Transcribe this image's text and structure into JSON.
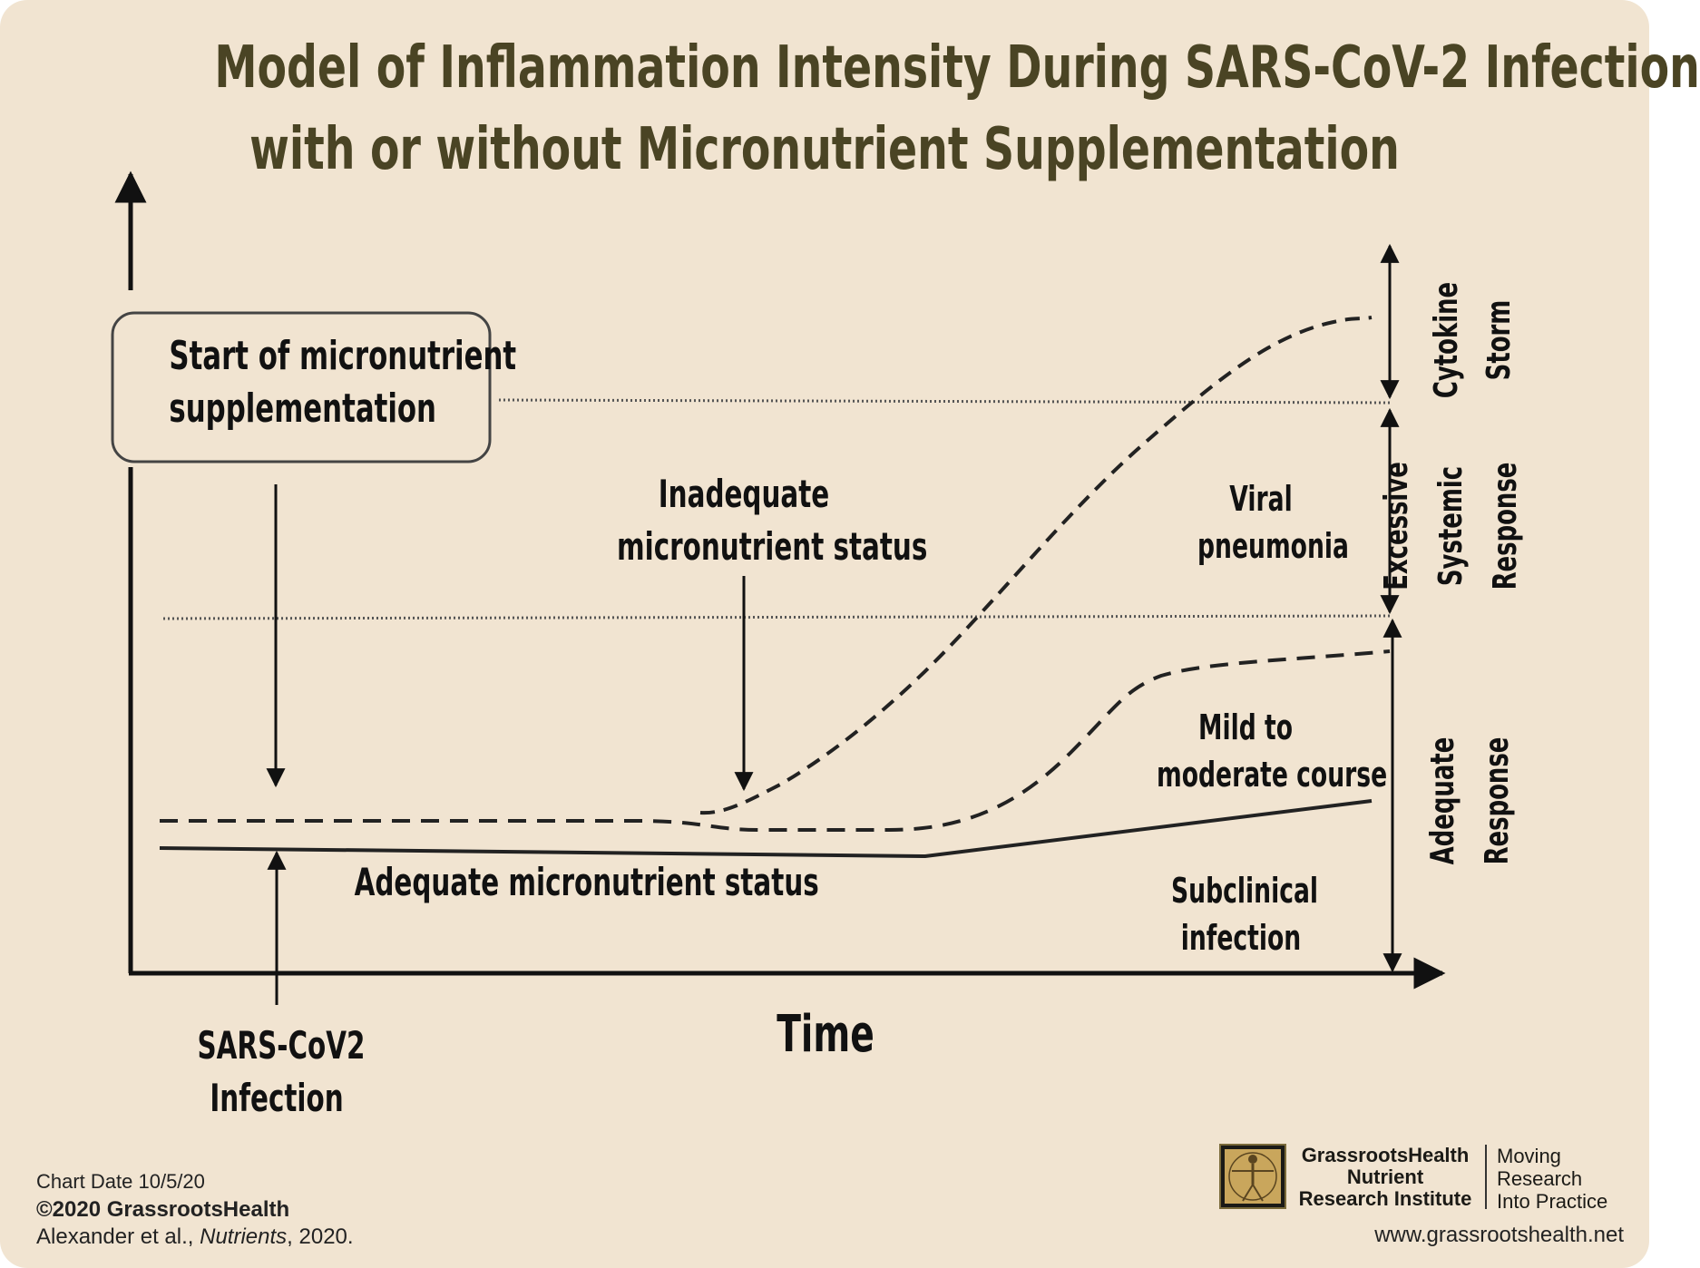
{
  "title": {
    "line1": "Model of Inflammation Intensity During SARS-CoV-2 Infection",
    "line2": "with or without Micronutrient Supplementation"
  },
  "labels": {
    "start_box": [
      "Start of micronutrient",
      "supplementation"
    ],
    "inadequate": [
      "Inadequate",
      "micronutrient status"
    ],
    "adequate": "Adequate micronutrient status",
    "infection": [
      "SARS-CoV2",
      "Infection"
    ],
    "x_axis": "Time",
    "viral_pneumonia": [
      "Viral",
      "pneumonia"
    ],
    "mild_moderate": [
      "Mild to",
      "moderate course"
    ],
    "subclinical": [
      "Subclinical",
      "infection"
    ]
  },
  "zones": {
    "cytokine": [
      "Cytokine",
      "Storm"
    ],
    "excessive": [
      "Excessive",
      "Systemic",
      "Response"
    ],
    "adequate_response": [
      "Adequate",
      "Response"
    ]
  },
  "footer": {
    "chart_date": "Chart Date 10/5/20",
    "copyright": "©2020 GrassrootsHealth",
    "citation_authors": "Alexander et al., ",
    "citation_journal": "Nutrients",
    "citation_year": ", 2020.",
    "org": [
      "GrassrootsHealth",
      "Nutrient",
      "Research Institute"
    ],
    "tagline": [
      "Moving",
      "Research",
      "Into Practice"
    ],
    "website": "www.grassrootshealth.net"
  },
  "colors": {
    "background": "#f1e4d1",
    "title": "#4a4424",
    "ink": "#111111"
  },
  "icons": {
    "logo": "vitruvian-man-icon"
  }
}
